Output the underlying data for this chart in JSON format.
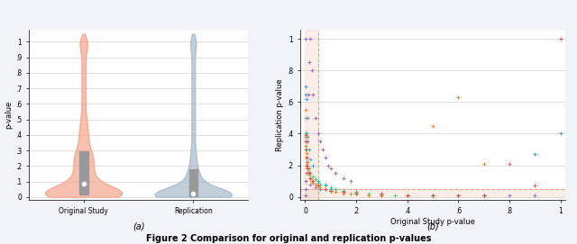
{
  "violin_original_data": [
    0.001,
    0.001,
    0.001,
    0.001,
    0.002,
    0.002,
    0.003,
    0.003,
    0.004,
    0.005,
    0.005,
    0.006,
    0.007,
    0.008,
    0.009,
    0.01,
    0.01,
    0.012,
    0.013,
    0.015,
    0.015,
    0.016,
    0.018,
    0.02,
    0.02,
    0.022,
    0.025,
    0.028,
    0.03,
    0.03,
    0.032,
    0.035,
    0.04,
    0.04,
    0.045,
    0.05,
    0.05,
    0.055,
    0.06,
    0.065,
    0.07,
    0.075,
    0.08,
    0.085,
    0.09,
    0.095,
    0.1,
    0.11,
    0.12,
    0.13,
    0.14,
    0.15,
    0.16,
    0.17,
    0.18,
    0.19,
    0.2,
    0.21,
    0.22,
    0.23,
    0.24,
    0.25,
    0.26,
    0.27,
    0.28,
    0.29,
    0.3,
    0.32,
    0.34,
    0.36,
    0.38,
    0.4,
    0.42,
    0.45,
    0.48,
    0.5,
    0.55,
    0.6,
    0.65,
    0.7,
    0.75,
    0.8,
    0.85,
    0.9,
    0.95,
    0.99,
    0.99,
    1.0
  ],
  "violin_replication_data": [
    0.001,
    0.001,
    0.001,
    0.001,
    0.001,
    0.001,
    0.001,
    0.002,
    0.002,
    0.002,
    0.002,
    0.003,
    0.003,
    0.003,
    0.004,
    0.004,
    0.004,
    0.005,
    0.005,
    0.005,
    0.006,
    0.006,
    0.007,
    0.007,
    0.008,
    0.008,
    0.009,
    0.009,
    0.01,
    0.01,
    0.01,
    0.012,
    0.012,
    0.013,
    0.013,
    0.015,
    0.015,
    0.016,
    0.017,
    0.018,
    0.02,
    0.02,
    0.022,
    0.025,
    0.028,
    0.03,
    0.032,
    0.035,
    0.04,
    0.045,
    0.05,
    0.055,
    0.06,
    0.07,
    0.08,
    0.09,
    0.1,
    0.11,
    0.12,
    0.13,
    0.14,
    0.15,
    0.16,
    0.18,
    0.2,
    0.22,
    0.25,
    0.28,
    0.3,
    0.35,
    0.4,
    0.45,
    0.5,
    0.55,
    0.6,
    0.65,
    0.7,
    0.75,
    0.8,
    0.85,
    0.9,
    0.95,
    0.99,
    0.99,
    1.0
  ],
  "violin_color_original": "#F4A58A",
  "violin_color_replication": "#A8BAC9",
  "violin_alpha": 0.7,
  "ylabel_violin": "p-value",
  "xtick_labels_violin": [
    "Original Study",
    "Replication"
  ],
  "yticks_violin": [
    0,
    0.1,
    0.2,
    0.3,
    0.4,
    0.5,
    0.6,
    0.7,
    0.8,
    0.9,
    1.0
  ],
  "ytick_labels_violin": [
    "0",
    ".1",
    ".2",
    ".3",
    ".4",
    ".5",
    ".6",
    ".7",
    ".8",
    ".9",
    "1"
  ],
  "scatter_data": {
    "AKJ": {
      "color": "#9B59B6",
      "marker": "+",
      "x": [
        0.001,
        0.002,
        0.003,
        0.004,
        0.005,
        0.006,
        0.008,
        0.01,
        0.012,
        0.015,
        0.02,
        0.025,
        0.03,
        0.04,
        0.05,
        0.06,
        0.07,
        0.08,
        0.09,
        0.1,
        0.12,
        0.15,
        0.18,
        0.02,
        0.04,
        0.06,
        0.1,
        0.15,
        0.2,
        0.3,
        0.4,
        0.5,
        0.6,
        0.7,
        0.8,
        0.9
      ],
      "y": [
        0.01,
        0.05,
        0.1,
        0.15,
        0.2,
        0.25,
        0.35,
        0.5,
        0.65,
        0.85,
        1.0,
        0.8,
        0.65,
        0.5,
        0.4,
        0.35,
        0.3,
        0.25,
        0.2,
        0.18,
        0.15,
        0.12,
        0.1,
        0.08,
        0.06,
        0.05,
        0.04,
        0.03,
        0.02,
        0.01,
        0.01,
        0.01,
        0.01,
        0.01,
        0.01,
        0.01
      ]
    },
    "JAP": {
      "color": "#3498DB",
      "marker": "+",
      "x": [
        0.001,
        0.002,
        0.003,
        0.005,
        0.007,
        0.01,
        0.015,
        0.02,
        0.03,
        0.05,
        0.08,
        0.1,
        0.2,
        0.3,
        0.5,
        0.7,
        0.9,
        1.0
      ],
      "y": [
        1.0,
        0.7,
        0.65,
        0.62,
        0.4,
        0.38,
        0.3,
        0.24,
        0.2,
        0.1,
        0.08,
        0.05,
        0.03,
        0.02,
        0.01,
        0.01,
        0.27,
        0.4
      ]
    },
    "JEP": {
      "color": "#2ECC71",
      "marker": "+",
      "x": [
        0.001,
        0.002,
        0.003,
        0.005,
        0.007,
        0.01,
        0.015,
        0.02,
        0.03,
        0.04,
        0.05,
        0.06,
        0.08,
        0.1,
        0.12,
        0.15,
        0.2,
        0.25,
        0.3,
        0.35,
        0.4,
        0.5
      ],
      "y": [
        0.5,
        0.4,
        0.35,
        0.3,
        0.25,
        0.22,
        0.18,
        0.15,
        0.13,
        0.11,
        0.09,
        0.08,
        0.07,
        0.06,
        0.05,
        0.04,
        0.03,
        0.02,
        0.01,
        0.01,
        0.01,
        0.01
      ]
    },
    "JPSP": {
      "color": "#E67E22",
      "marker": "+",
      "x": [
        0.001,
        0.002,
        0.003,
        0.004,
        0.005,
        0.006,
        0.008,
        0.01,
        0.012,
        0.015,
        0.02,
        0.025,
        0.03,
        0.04,
        0.05,
        0.06,
        0.08,
        0.1,
        0.12,
        0.15,
        0.18,
        0.2,
        0.25,
        0.3,
        0.4,
        0.5,
        0.6,
        0.7
      ],
      "y": [
        0.55,
        0.38,
        0.32,
        0.28,
        0.25,
        0.22,
        0.2,
        0.18,
        0.16,
        0.14,
        0.12,
        0.1,
        0.09,
        0.08,
        0.07,
        0.06,
        0.05,
        0.04,
        0.03,
        0.02,
        0.02,
        0.02,
        0.01,
        0.01,
        0.01,
        0.45,
        0.63,
        0.21
      ]
    },
    "OBHDP": {
      "color": "#E74C3C",
      "marker": "+",
      "x": [
        0.001,
        0.002,
        0.003,
        0.005,
        0.007,
        0.01,
        0.015,
        0.02,
        0.03,
        0.05,
        0.08,
        0.1,
        0.15,
        0.2,
        0.3,
        0.4,
        0.5,
        0.6,
        0.7,
        0.8,
        0.9,
        1.0
      ],
      "y": [
        0.39,
        0.35,
        0.3,
        0.25,
        0.2,
        0.18,
        0.15,
        0.12,
        0.1,
        0.07,
        0.05,
        0.04,
        0.03,
        0.02,
        0.02,
        0.01,
        0.01,
        0.01,
        0.01,
        0.21,
        0.07,
        1.0
      ]
    }
  },
  "scatter_xlabel": "Original Study p-value",
  "scatter_ylabel": "Replication p-value",
  "scatter_xticks": [
    0,
    0.2,
    0.4,
    0.6,
    0.8,
    1.0
  ],
  "scatter_xtick_labels": [
    "0",
    ".2",
    ".4",
    ".6",
    ".8",
    "1"
  ],
  "scatter_yticks": [
    0,
    0.2,
    0.4,
    0.6,
    0.8,
    1.0
  ],
  "scatter_ytick_labels": [
    "0",
    ".2",
    ".4",
    ".6",
    ".8",
    "1"
  ],
  "sig_threshold": 0.05,
  "shaded_region_color": "#F5D5C8",
  "shaded_region_alpha": 0.4,
  "dashed_line_color": "#E8A090",
  "caption_a": "(a)",
  "caption_b": "(b)",
  "figure_title": "Figure 2 Comparison for original and replication p-values",
  "bg_color": "#F0F4F8",
  "plot_bg_color": "#FFFFFF"
}
